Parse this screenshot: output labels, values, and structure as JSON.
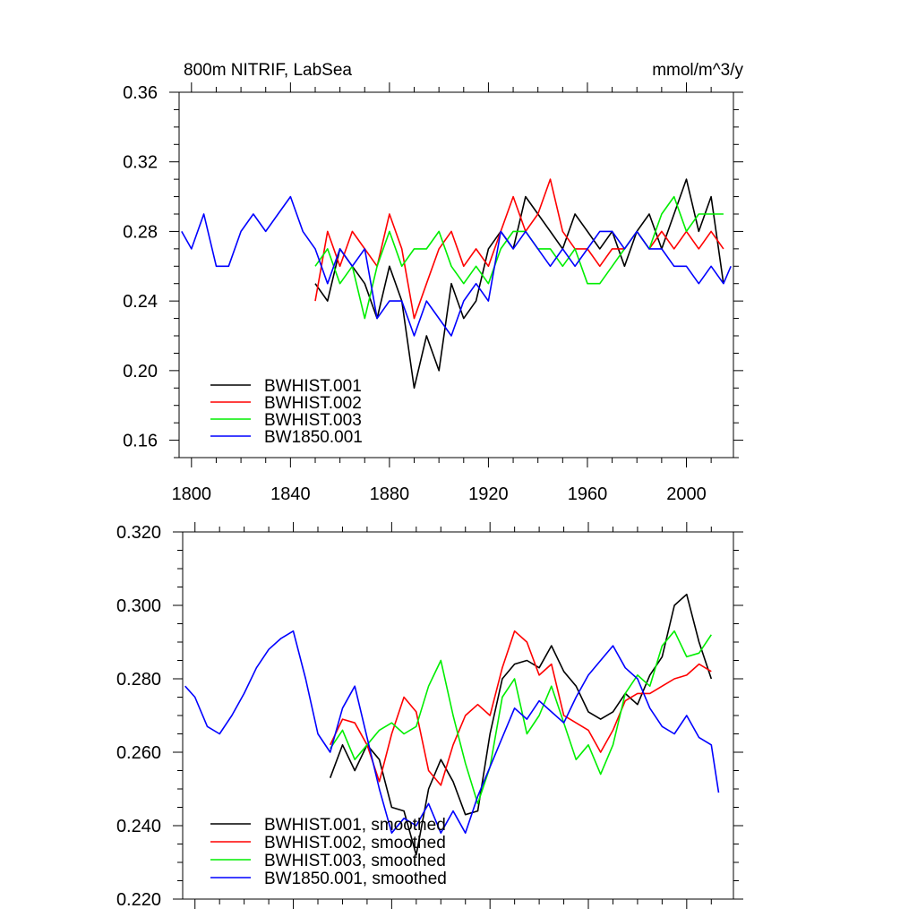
{
  "chart_data": [
    {
      "type": "line",
      "title": "800m NITRIF, LabSea",
      "units": "mmol/m^3/y",
      "xlim": [
        1795,
        2019
      ],
      "ylim": [
        0.15,
        0.36
      ],
      "yticks": [
        0.16,
        0.2,
        0.24,
        0.28,
        0.32,
        0.36
      ],
      "ytick_labels": [
        "0.16",
        "0.20",
        "0.24",
        "0.28",
        "0.32",
        "0.36"
      ],
      "xticks": [
        1800,
        1840,
        1880,
        1920,
        1960,
        2000
      ],
      "xtick_labels": [
        "1800",
        "1840",
        "1880",
        "1920",
        "1960",
        "2000"
      ],
      "legend": "bottom-left",
      "series": [
        {
          "name": "BWHIST.001",
          "color": "#000000",
          "x": [
            1850,
            1855,
            1860,
            1865,
            1870,
            1875,
            1880,
            1885,
            1890,
            1895,
            1900,
            1905,
            1910,
            1915,
            1920,
            1925,
            1930,
            1935,
            1940,
            1945,
            1950,
            1955,
            1960,
            1965,
            1970,
            1975,
            1980,
            1985,
            1990,
            1995,
            2000,
            2005,
            2010,
            2015
          ],
          "y": [
            0.25,
            0.24,
            0.27,
            0.26,
            0.25,
            0.23,
            0.26,
            0.24,
            0.19,
            0.22,
            0.2,
            0.25,
            0.23,
            0.24,
            0.27,
            0.28,
            0.27,
            0.3,
            0.29,
            0.28,
            0.27,
            0.29,
            0.28,
            0.27,
            0.28,
            0.26,
            0.28,
            0.29,
            0.27,
            0.29,
            0.31,
            0.28,
            0.3,
            0.25
          ]
        },
        {
          "name": "BWHIST.002",
          "color": "#ff0000",
          "x": [
            1850,
            1855,
            1860,
            1865,
            1870,
            1875,
            1880,
            1885,
            1890,
            1895,
            1900,
            1905,
            1910,
            1915,
            1920,
            1925,
            1930,
            1935,
            1940,
            1945,
            1950,
            1955,
            1960,
            1965,
            1970,
            1975,
            1980,
            1985,
            1990,
            1995,
            2000,
            2005,
            2010,
            2015
          ],
          "y": [
            0.24,
            0.28,
            0.26,
            0.28,
            0.27,
            0.26,
            0.29,
            0.27,
            0.23,
            0.25,
            0.27,
            0.28,
            0.26,
            0.27,
            0.26,
            0.28,
            0.3,
            0.28,
            0.29,
            0.31,
            0.28,
            0.27,
            0.27,
            0.26,
            0.27,
            0.27,
            0.28,
            0.27,
            0.28,
            0.27,
            0.28,
            0.27,
            0.28,
            0.27
          ]
        },
        {
          "name": "BWHIST.003",
          "color": "#00ee00",
          "x": [
            1850,
            1855,
            1860,
            1865,
            1870,
            1875,
            1880,
            1885,
            1890,
            1895,
            1900,
            1905,
            1910,
            1915,
            1920,
            1925,
            1930,
            1935,
            1940,
            1945,
            1950,
            1955,
            1960,
            1965,
            1970,
            1975,
            1980,
            1985,
            1990,
            1995,
            2000,
            2005,
            2010,
            2015
          ],
          "y": [
            0.26,
            0.27,
            0.25,
            0.26,
            0.23,
            0.26,
            0.28,
            0.26,
            0.27,
            0.27,
            0.28,
            0.26,
            0.25,
            0.26,
            0.25,
            0.27,
            0.28,
            0.28,
            0.27,
            0.27,
            0.26,
            0.27,
            0.25,
            0.25,
            0.26,
            0.27,
            0.28,
            0.27,
            0.29,
            0.3,
            0.28,
            0.29,
            0.29,
            0.29
          ]
        },
        {
          "name": "BW1850.001",
          "color": "#0000ff",
          "x": [
            1796,
            1800,
            1805,
            1810,
            1815,
            1820,
            1825,
            1830,
            1835,
            1840,
            1845,
            1850,
            1855,
            1860,
            1865,
            1870,
            1875,
            1880,
            1885,
            1890,
            1895,
            1900,
            1905,
            1910,
            1915,
            1920,
            1925,
            1930,
            1935,
            1940,
            1945,
            1950,
            1955,
            1960,
            1965,
            1970,
            1975,
            1980,
            1985,
            1990,
            1995,
            2000,
            2005,
            2010,
            2015,
            2018
          ],
          "y": [
            0.28,
            0.27,
            0.29,
            0.26,
            0.26,
            0.28,
            0.29,
            0.28,
            0.29,
            0.3,
            0.28,
            0.27,
            0.25,
            0.27,
            0.26,
            0.27,
            0.23,
            0.24,
            0.24,
            0.22,
            0.24,
            0.23,
            0.22,
            0.24,
            0.25,
            0.24,
            0.28,
            0.27,
            0.28,
            0.27,
            0.26,
            0.27,
            0.26,
            0.27,
            0.28,
            0.28,
            0.27,
            0.28,
            0.27,
            0.27,
            0.26,
            0.26,
            0.25,
            0.26,
            0.25,
            0.26
          ]
        }
      ]
    },
    {
      "type": "line",
      "title": "",
      "xlim": [
        1795,
        2019
      ],
      "ylim": [
        0.22,
        0.32
      ],
      "yticks": [
        0.22,
        0.24,
        0.26,
        0.28,
        0.3,
        0.32
      ],
      "ytick_labels": [
        "0.220",
        "0.240",
        "0.260",
        "0.280",
        "0.300",
        "0.320"
      ],
      "xticks": [
        1800,
        1840,
        1880,
        1920,
        1960,
        2000
      ],
      "legend": "bottom-left",
      "series": [
        {
          "name": "BWHIST.001, smoothed",
          "color": "#000000",
          "x": [
            1855,
            1860,
            1865,
            1870,
            1875,
            1880,
            1885,
            1890,
            1895,
            1900,
            1905,
            1910,
            1915,
            1920,
            1925,
            1930,
            1935,
            1940,
            1945,
            1950,
            1955,
            1960,
            1965,
            1970,
            1975,
            1980,
            1985,
            1990,
            1995,
            2000,
            2005,
            2010
          ],
          "y": [
            0.253,
            0.262,
            0.255,
            0.262,
            0.258,
            0.245,
            0.244,
            0.232,
            0.25,
            0.258,
            0.252,
            0.243,
            0.244,
            0.265,
            0.28,
            0.284,
            0.285,
            0.283,
            0.289,
            0.282,
            0.278,
            0.271,
            0.269,
            0.271,
            0.276,
            0.273,
            0.281,
            0.286,
            0.3,
            0.303,
            0.29,
            0.28
          ]
        },
        {
          "name": "BWHIST.002, smoothed",
          "color": "#ff0000",
          "x": [
            1855,
            1860,
            1865,
            1870,
            1875,
            1880,
            1885,
            1890,
            1895,
            1900,
            1905,
            1910,
            1915,
            1920,
            1925,
            1930,
            1935,
            1940,
            1945,
            1950,
            1955,
            1960,
            1965,
            1970,
            1975,
            1980,
            1985,
            1990,
            1995,
            2000,
            2005,
            2010
          ],
          "y": [
            0.262,
            0.269,
            0.268,
            0.262,
            0.252,
            0.265,
            0.275,
            0.271,
            0.255,
            0.251,
            0.262,
            0.27,
            0.273,
            0.27,
            0.283,
            0.293,
            0.29,
            0.281,
            0.284,
            0.27,
            0.268,
            0.266,
            0.26,
            0.266,
            0.274,
            0.276,
            0.276,
            0.278,
            0.28,
            0.281,
            0.284,
            0.282
          ]
        },
        {
          "name": "BWHIST.003, smoothed",
          "color": "#00ee00",
          "x": [
            1855,
            1860,
            1865,
            1870,
            1875,
            1880,
            1885,
            1890,
            1895,
            1900,
            1905,
            1910,
            1915,
            1920,
            1925,
            1930,
            1935,
            1940,
            1945,
            1950,
            1955,
            1960,
            1965,
            1970,
            1975,
            1980,
            1985,
            1990,
            1995,
            2000,
            2005,
            2010
          ],
          "y": [
            0.261,
            0.266,
            0.258,
            0.262,
            0.266,
            0.268,
            0.265,
            0.267,
            0.278,
            0.285,
            0.27,
            0.257,
            0.246,
            0.256,
            0.275,
            0.28,
            0.265,
            0.27,
            0.278,
            0.268,
            0.258,
            0.262,
            0.254,
            0.262,
            0.276,
            0.281,
            0.278,
            0.289,
            0.293,
            0.286,
            0.287,
            0.292
          ]
        },
        {
          "name": "BW1850.001, smoothed",
          "color": "#0000ff",
          "x": [
            1796,
            1800,
            1805,
            1810,
            1815,
            1820,
            1825,
            1830,
            1835,
            1840,
            1845,
            1850,
            1855,
            1860,
            1865,
            1870,
            1875,
            1880,
            1885,
            1890,
            1895,
            1900,
            1905,
            1910,
            1915,
            1920,
            1925,
            1930,
            1935,
            1940,
            1945,
            1950,
            1955,
            1960,
            1965,
            1970,
            1975,
            1980,
            1985,
            1990,
            1995,
            2000,
            2005,
            2010,
            2013
          ],
          "y": [
            0.278,
            0.275,
            0.267,
            0.265,
            0.27,
            0.276,
            0.283,
            0.288,
            0.291,
            0.293,
            0.28,
            0.265,
            0.26,
            0.272,
            0.278,
            0.264,
            0.25,
            0.238,
            0.242,
            0.24,
            0.246,
            0.238,
            0.244,
            0.238,
            0.248,
            0.256,
            0.264,
            0.272,
            0.269,
            0.274,
            0.271,
            0.268,
            0.275,
            0.281,
            0.285,
            0.289,
            0.283,
            0.28,
            0.272,
            0.267,
            0.265,
            0.27,
            0.264,
            0.262,
            0.249
          ]
        }
      ]
    }
  ]
}
